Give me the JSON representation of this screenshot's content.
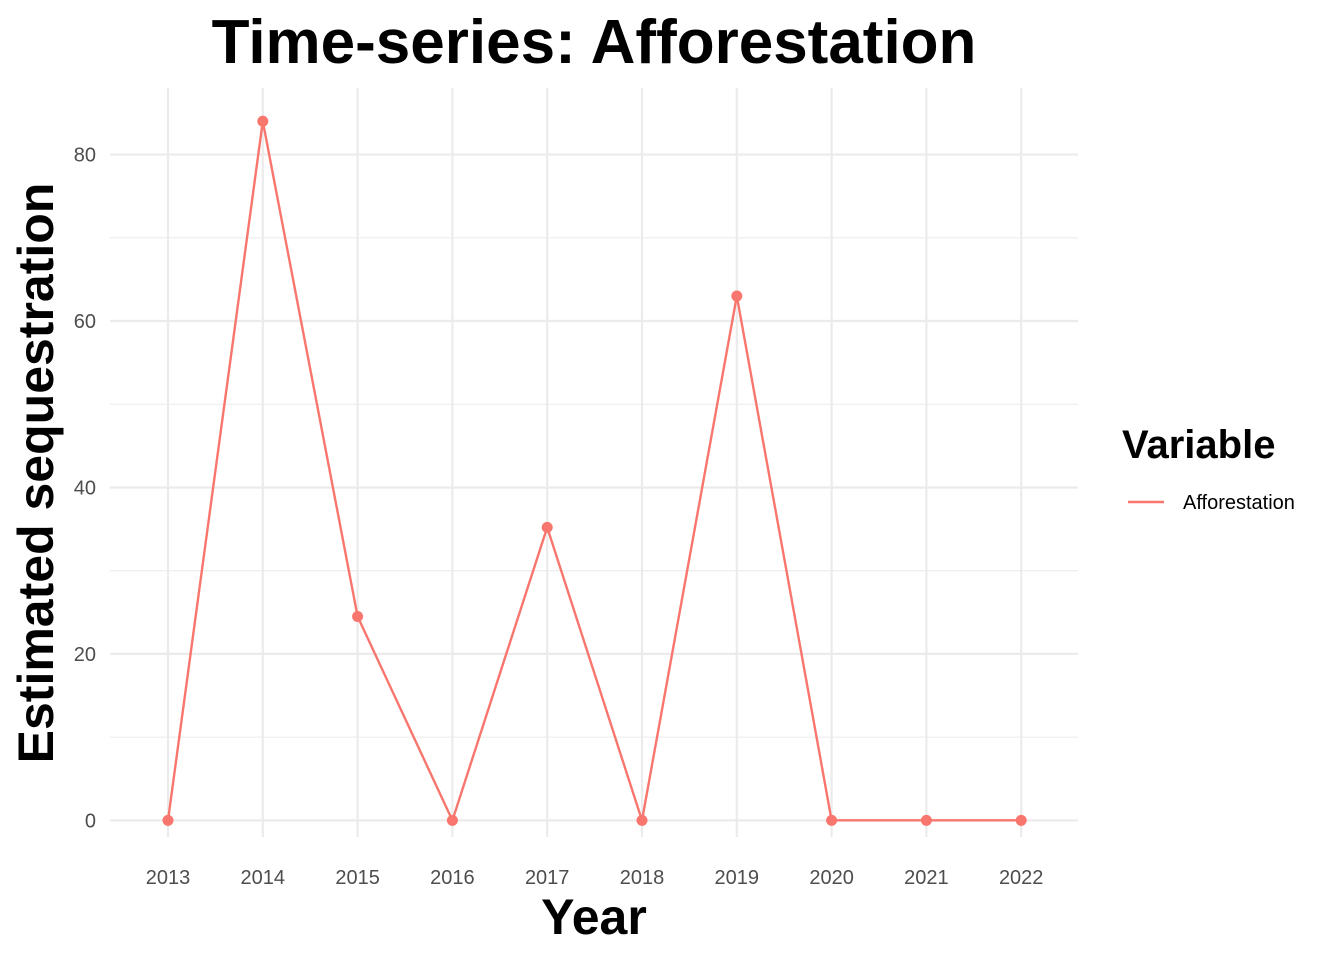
{
  "chart_data": {
    "type": "line",
    "title": "Time-series: Afforestation",
    "xlabel": "Year",
    "ylabel": "Estimated sequestration",
    "x": [
      "2013",
      "2014",
      "2015",
      "2016",
      "2017",
      "2018",
      "2019",
      "2020",
      "2021",
      "2022"
    ],
    "series": [
      {
        "name": "Afforestation",
        "color": "#F8766D",
        "values": [
          0,
          84,
          24.5,
          0,
          35.2,
          0,
          63,
          0,
          0,
          0
        ]
      }
    ],
    "yticks": [
      "0",
      "20",
      "40",
      "60",
      "80"
    ],
    "ylim": [
      -2,
      88
    ],
    "grid": true,
    "legend": {
      "title": "Variable",
      "position": "right"
    }
  }
}
